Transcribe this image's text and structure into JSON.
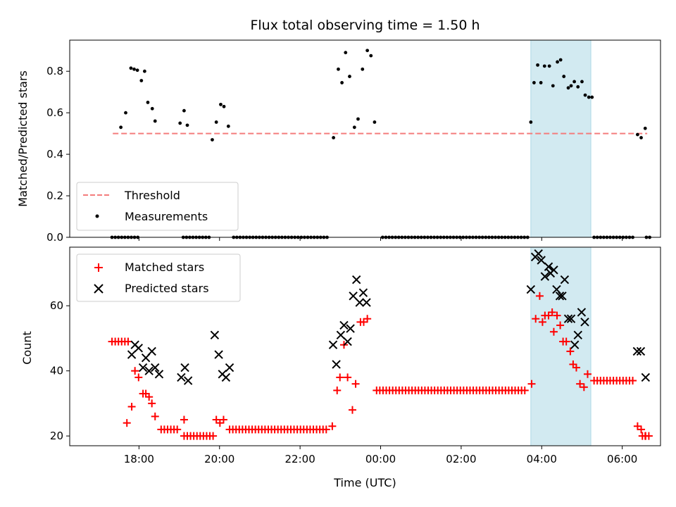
{
  "title": "Flux total observing time = 1.50 h",
  "top": {
    "ylabel": "Matched/Predicted stars",
    "ylim": [
      0,
      0.95
    ],
    "yticks": [
      "0.0",
      "0.2",
      "0.4",
      "0.6",
      "0.8"
    ],
    "legend": {
      "threshold": "Threshold",
      "measurements": "Measurements"
    }
  },
  "bottom": {
    "ylabel": "Count",
    "ylim": [
      17,
      78
    ],
    "yticks": [
      "20",
      "40",
      "60"
    ],
    "legend": {
      "matched": "Matched stars",
      "predicted": "Predicted stars"
    }
  },
  "xaxis": {
    "label": "Time (UTC)",
    "ticks": [
      "18:00",
      "20:00",
      "22:00",
      "00:00",
      "02:00",
      "04:00",
      "06:00"
    ]
  },
  "colors": {
    "threshold": "#f47c7c",
    "measurement": "#000000",
    "matched": "#ff0000",
    "predicted": "#000000",
    "highlight": "#add8e6"
  },
  "chart_data": [
    {
      "type": "scatter",
      "panel": "top",
      "x_unit": "hours since 17:00 UTC",
      "ylabel": "Matched/Predicted stars",
      "ylim": [
        0,
        0.95
      ],
      "threshold": {
        "name": "Threshold",
        "y": 0.5,
        "x_range": [
          0.35,
          13.62
        ],
        "style": "dashed"
      },
      "highlight_span": {
        "x_range": [
          10.73,
          12.22
        ]
      },
      "series": [
        {
          "name": "Measurements",
          "points": [
            [
              0.55,
              0.53
            ],
            [
              0.67,
              0.6
            ],
            [
              0.8,
              0.815
            ],
            [
              0.88,
              0.81
            ],
            [
              0.96,
              0.805
            ],
            [
              1.06,
              0.755
            ],
            [
              1.14,
              0.8
            ],
            [
              1.22,
              0.65
            ],
            [
              1.33,
              0.62
            ],
            [
              1.4,
              0.56
            ],
            [
              2.02,
              0.55
            ],
            [
              2.12,
              0.61
            ],
            [
              2.2,
              0.54
            ],
            [
              2.82,
              0.47
            ],
            [
              2.92,
              0.555
            ],
            [
              3.03,
              0.64
            ],
            [
              3.11,
              0.63
            ],
            [
              3.22,
              0.535
            ],
            [
              5.83,
              0.48
            ],
            [
              5.95,
              0.81
            ],
            [
              6.04,
              0.745
            ],
            [
              6.13,
              0.89
            ],
            [
              6.23,
              0.775
            ],
            [
              6.35,
              0.53
            ],
            [
              6.44,
              0.57
            ],
            [
              6.55,
              0.81
            ],
            [
              6.67,
              0.9
            ],
            [
              6.76,
              0.875
            ],
            [
              6.85,
              0.555
            ],
            [
              10.73,
              0.555
            ],
            [
              10.81,
              0.745
            ],
            [
              10.9,
              0.83
            ],
            [
              10.98,
              0.745
            ],
            [
              11.07,
              0.825
            ],
            [
              11.19,
              0.825
            ],
            [
              11.28,
              0.73
            ],
            [
              11.39,
              0.845
            ],
            [
              11.47,
              0.855
            ],
            [
              11.55,
              0.775
            ],
            [
              11.66,
              0.72
            ],
            [
              11.73,
              0.73
            ],
            [
              11.81,
              0.75
            ],
            [
              11.9,
              0.725
            ],
            [
              12.0,
              0.75
            ],
            [
              12.08,
              0.685
            ],
            [
              12.17,
              0.675
            ],
            [
              12.25,
              0.675
            ],
            [
              13.38,
              0.495
            ],
            [
              13.47,
              0.48
            ],
            [
              13.57,
              0.525
            ]
          ]
        }
      ],
      "zero_runs": [
        [
          0.33,
          1.0
        ],
        [
          2.1,
          2.8
        ],
        [
          3.35,
          5.7
        ],
        [
          7.05,
          10.65
        ],
        [
          12.3,
          13.3
        ],
        [
          13.6,
          13.7
        ]
      ]
    },
    {
      "type": "scatter",
      "panel": "bottom",
      "x_unit": "hours since 17:00 UTC",
      "ylabel": "Count",
      "ylim": [
        17,
        78
      ],
      "highlight_span": {
        "x_range": [
          10.73,
          12.22
        ]
      },
      "series": [
        {
          "name": "Matched stars",
          "marker": "+",
          "runs": [
            {
              "from": 0.33,
              "to": 0.75,
              "step": 0.08,
              "y": 49
            },
            {
              "from": 1.55,
              "to": 2.02,
              "step": 0.08,
              "y": 22
            },
            {
              "from": 2.12,
              "to": 2.85,
              "step": 0.08,
              "y": 20
            },
            {
              "from": 3.25,
              "to": 5.7,
              "step": 0.08,
              "y": 22
            },
            {
              "from": 6.9,
              "to": 10.65,
              "step": 0.08,
              "y": 34
            },
            {
              "from": 12.3,
              "to": 13.3,
              "step": 0.08,
              "y": 37
            },
            {
              "from": 13.5,
              "to": 13.72,
              "step": 0.08,
              "y": 20
            }
          ],
          "points": [
            [
              0.7,
              24
            ],
            [
              0.82,
              29
            ],
            [
              0.9,
              40
            ],
            [
              0.99,
              38
            ],
            [
              1.1,
              33
            ],
            [
              1.17,
              33
            ],
            [
              1.25,
              32
            ],
            [
              1.32,
              30
            ],
            [
              1.4,
              26
            ],
            [
              2.12,
              25
            ],
            [
              2.92,
              25
            ],
            [
              3.01,
              24
            ],
            [
              3.1,
              25
            ],
            [
              5.8,
              23
            ],
            [
              5.92,
              34
            ],
            [
              5.99,
              38
            ],
            [
              6.09,
              48
            ],
            [
              6.18,
              38
            ],
            [
              6.3,
              28
            ],
            [
              6.38,
              36
            ],
            [
              6.5,
              55
            ],
            [
              6.58,
              55
            ],
            [
              6.67,
              56
            ],
            [
              10.75,
              36
            ],
            [
              10.85,
              56
            ],
            [
              10.95,
              63
            ],
            [
              11.02,
              55
            ],
            [
              11.08,
              57
            ],
            [
              11.17,
              57
            ],
            [
              11.26,
              58
            ],
            [
              11.3,
              52
            ],
            [
              11.38,
              57
            ],
            [
              11.46,
              54
            ],
            [
              11.53,
              49
            ],
            [
              11.61,
              49
            ],
            [
              11.71,
              46
            ],
            [
              11.78,
              42
            ],
            [
              11.86,
              41
            ],
            [
              11.95,
              36
            ],
            [
              12.05,
              35
            ],
            [
              12.14,
              39
            ],
            [
              13.38,
              23
            ],
            [
              13.47,
              22
            ],
            [
              13.57,
              20
            ]
          ]
        },
        {
          "name": "Predicted stars",
          "marker": "x",
          "points": [
            [
              0.82,
              45
            ],
            [
              0.9,
              48
            ],
            [
              0.99,
              47
            ],
            [
              1.1,
              41
            ],
            [
              1.17,
              44
            ],
            [
              1.25,
              40
            ],
            [
              1.32,
              46
            ],
            [
              1.4,
              41
            ],
            [
              1.5,
              39
            ],
            [
              2.05,
              38
            ],
            [
              2.14,
              41
            ],
            [
              2.22,
              37
            ],
            [
              2.88,
              51
            ],
            [
              2.98,
              45
            ],
            [
              3.07,
              39
            ],
            [
              3.16,
              38
            ],
            [
              3.25,
              41
            ],
            [
              5.82,
              48
            ],
            [
              5.9,
              42
            ],
            [
              6.01,
              51
            ],
            [
              6.09,
              54
            ],
            [
              6.18,
              49
            ],
            [
              6.25,
              53
            ],
            [
              6.32,
              63
            ],
            [
              6.4,
              68
            ],
            [
              6.48,
              61
            ],
            [
              6.57,
              64
            ],
            [
              6.65,
              61
            ],
            [
              10.73,
              65
            ],
            [
              10.84,
              75
            ],
            [
              10.92,
              76
            ],
            [
              10.99,
              74
            ],
            [
              11.08,
              69
            ],
            [
              11.17,
              72
            ],
            [
              11.22,
              70
            ],
            [
              11.3,
              71
            ],
            [
              11.37,
              65
            ],
            [
              11.45,
              63
            ],
            [
              11.51,
              63
            ],
            [
              11.57,
              68
            ],
            [
              11.66,
              56
            ],
            [
              11.73,
              56
            ],
            [
              11.82,
              48
            ],
            [
              11.9,
              51
            ],
            [
              11.99,
              58
            ],
            [
              12.07,
              55
            ],
            [
              13.37,
              46
            ],
            [
              13.46,
              46
            ],
            [
              13.58,
              38
            ]
          ]
        }
      ]
    }
  ]
}
